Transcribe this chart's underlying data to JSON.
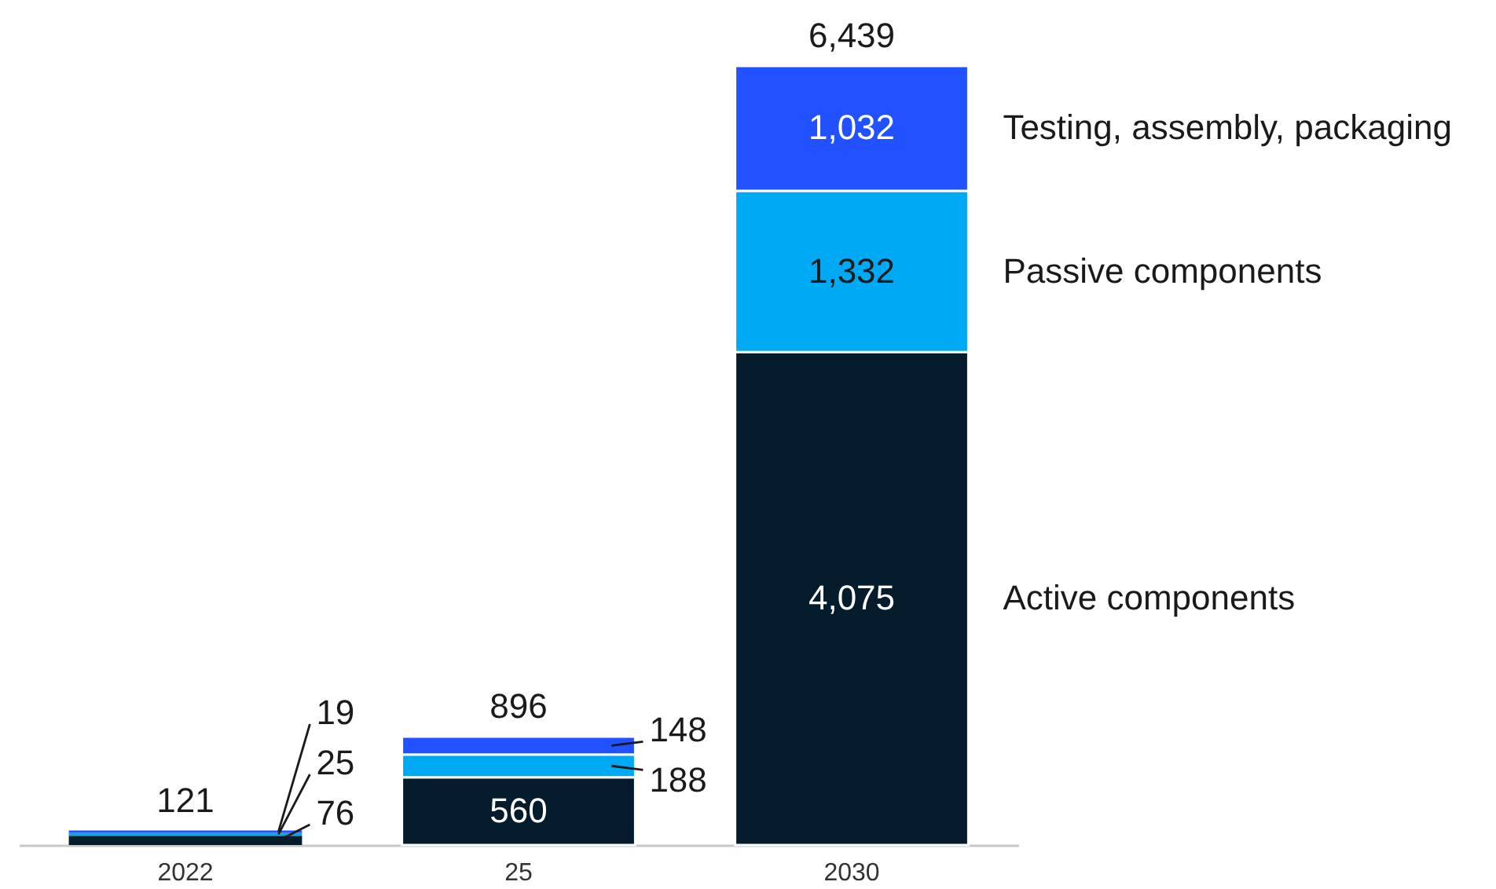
{
  "chart_data": {
    "type": "bar",
    "stacked": true,
    "categories": [
      "2022",
      "25",
      "2030"
    ],
    "series": [
      {
        "name": "Active components",
        "color": "#051c2c",
        "values": [
          76,
          560,
          4075
        ],
        "value_labels": [
          "76",
          "560",
          "4,075"
        ]
      },
      {
        "name": "Passive components",
        "color": "#00a9f4",
        "values": [
          25,
          188,
          1332
        ],
        "value_labels": [
          "25",
          "188",
          "1,332"
        ]
      },
      {
        "name": "Testing, assembly, packaging",
        "color": "#2251ff",
        "values": [
          19,
          148,
          1032
        ],
        "value_labels": [
          "19",
          "148",
          "1,032"
        ]
      }
    ],
    "totals": [
      "121",
      "896",
      "6,439"
    ]
  }
}
